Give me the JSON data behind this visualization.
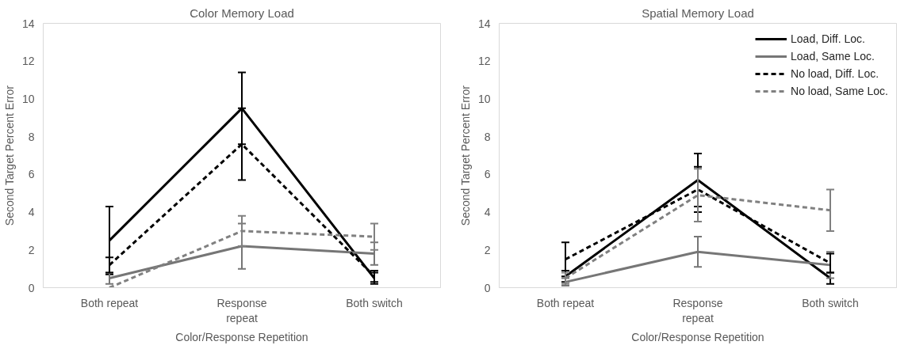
{
  "chart_data": [
    {
      "type": "line",
      "title": "Color Memory Load",
      "xlabel": "Color/Response Repetition",
      "ylabel": "Second Target Percent Error",
      "categories": [
        "Both repeat",
        "Response repeat",
        "Both switch"
      ],
      "ylim": [
        0,
        14
      ],
      "yticks": [
        0,
        2,
        4,
        6,
        8,
        10,
        12,
        14
      ],
      "grid": false,
      "legend": false,
      "marker": "none",
      "series": [
        {
          "color": "#000000",
          "line_style": "solid",
          "values": [
            2.5,
            9.5,
            0.5
          ],
          "errors": [
            1.8,
            1.9,
            0.3
          ]
        },
        {
          "color": "#767676",
          "line_style": "solid",
          "values": [
            0.5,
            2.2,
            1.8
          ],
          "errors": [
            0.3,
            1.2,
            0.6
          ]
        },
        {
          "color": "#000000",
          "line_style": "dashed",
          "values": [
            1.2,
            7.6,
            0.6
          ],
          "errors": [
            0.4,
            1.9,
            0.3
          ]
        },
        {
          "color": "#808080",
          "line_style": "dashed",
          "values": [
            0.0,
            3.0,
            2.7
          ],
          "errors": [
            null,
            0.8,
            0.7
          ]
        }
      ]
    },
    {
      "type": "line",
      "title": "Spatial Memory Load",
      "xlabel": "Color/Response Repetition",
      "ylabel": "Second Target Percent Error",
      "categories": [
        "Both repeat",
        "Response repeat",
        "Both switch"
      ],
      "ylim": [
        0,
        14
      ],
      "yticks": [
        0,
        2,
        4,
        6,
        8,
        10,
        12,
        14
      ],
      "grid": false,
      "legend": "top right",
      "marker": "none",
      "series": [
        {
          "name": "Load, Diff. Loc.",
          "color": "#000000",
          "line_style": "solid",
          "values": [
            0.6,
            5.7,
            0.5
          ],
          "errors": [
            0.3,
            1.4,
            0.3
          ]
        },
        {
          "name": "Load, Same Loc.",
          "color": "#767676",
          "line_style": "solid",
          "values": [
            0.3,
            1.9,
            1.2
          ],
          "errors": [
            0.2,
            0.8,
            0.7
          ]
        },
        {
          "name": "No load, Diff. Loc.",
          "color": "#000000",
          "line_style": "dashed",
          "values": [
            1.5,
            5.2,
            1.3
          ],
          "errors": [
            0.9,
            1.2,
            0.5
          ]
        },
        {
          "name": "No load, Same Loc.",
          "color": "#808080",
          "line_style": "dashed",
          "values": [
            0.5,
            4.9,
            4.1
          ],
          "errors": [
            0.3,
            1.4,
            1.1
          ]
        }
      ]
    }
  ]
}
